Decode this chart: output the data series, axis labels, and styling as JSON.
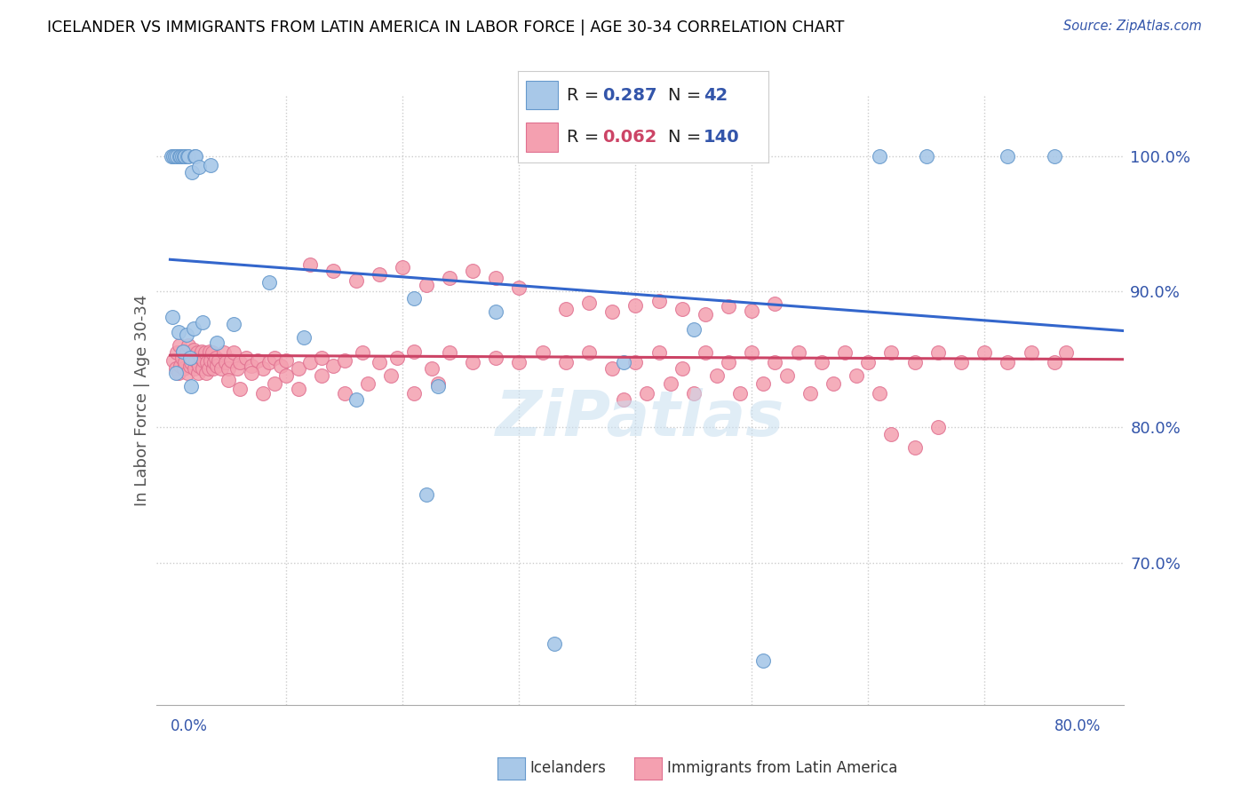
{
  "title": "ICELANDER VS IMMIGRANTS FROM LATIN AMERICA IN LABOR FORCE | AGE 30-34 CORRELATION CHART",
  "source": "Source: ZipAtlas.com",
  "ylabel": "In Labor Force | Age 30-34",
  "xmin": 0.0,
  "xmax": 0.8,
  "ymin": 0.595,
  "ymax": 1.045,
  "blue_R": 0.287,
  "blue_N": 42,
  "pink_R": 0.062,
  "pink_N": 140,
  "blue_marker_color": "#a8c8e8",
  "blue_edge_color": "#6699cc",
  "blue_line_color": "#3366cc",
  "pink_marker_color": "#f4a0b0",
  "pink_edge_color": "#e07090",
  "pink_line_color": "#cc4466",
  "watermark_color": "#c8dff0",
  "legend_label_blue": "Icelanders",
  "legend_label_pink": "Immigrants from Latin America",
  "blue_x": [
    0.001,
    0.002,
    0.003,
    0.004,
    0.005,
    0.006,
    0.007,
    0.008,
    0.009,
    0.01,
    0.011,
    0.012,
    0.013,
    0.014,
    0.015,
    0.016,
    0.017,
    0.018,
    0.019,
    0.02,
    0.021,
    0.022,
    0.025,
    0.028,
    0.035,
    0.04,
    0.055,
    0.085,
    0.115,
    0.16,
    0.21,
    0.22,
    0.23,
    0.28,
    0.33,
    0.39,
    0.45,
    0.51,
    0.61,
    0.65,
    0.72,
    0.76
  ],
  "blue_y": [
    1.0,
    0.881,
    1.0,
    1.0,
    0.84,
    1.0,
    0.87,
    1.0,
    1.0,
    1.0,
    0.856,
    1.0,
    1.0,
    0.868,
    1.0,
    1.0,
    0.851,
    0.83,
    0.988,
    0.873,
    1.0,
    1.0,
    0.992,
    0.877,
    0.993,
    0.862,
    0.876,
    0.907,
    0.866,
    0.82,
    0.895,
    0.75,
    0.83,
    0.885,
    0.64,
    0.848,
    0.872,
    0.628,
    1.0,
    1.0,
    1.0,
    1.0
  ],
  "pink_x": [
    0.003,
    0.005,
    0.006,
    0.007,
    0.008,
    0.009,
    0.01,
    0.011,
    0.012,
    0.013,
    0.014,
    0.015,
    0.016,
    0.017,
    0.018,
    0.019,
    0.02,
    0.021,
    0.022,
    0.023,
    0.024,
    0.025,
    0.026,
    0.027,
    0.028,
    0.029,
    0.03,
    0.031,
    0.032,
    0.033,
    0.034,
    0.035,
    0.036,
    0.037,
    0.038,
    0.039,
    0.04,
    0.042,
    0.044,
    0.046,
    0.048,
    0.05,
    0.052,
    0.055,
    0.058,
    0.06,
    0.065,
    0.07,
    0.075,
    0.08,
    0.085,
    0.09,
    0.095,
    0.1,
    0.11,
    0.12,
    0.13,
    0.14,
    0.15,
    0.165,
    0.18,
    0.195,
    0.21,
    0.225,
    0.24,
    0.26,
    0.28,
    0.3,
    0.32,
    0.34,
    0.36,
    0.38,
    0.4,
    0.42,
    0.44,
    0.46,
    0.48,
    0.5,
    0.52,
    0.54,
    0.56,
    0.58,
    0.6,
    0.62,
    0.64,
    0.66,
    0.68,
    0.7,
    0.72,
    0.74,
    0.76,
    0.77,
    0.34,
    0.36,
    0.38,
    0.4,
    0.42,
    0.44,
    0.46,
    0.48,
    0.5,
    0.52,
    0.28,
    0.3,
    0.12,
    0.14,
    0.16,
    0.18,
    0.2,
    0.22,
    0.24,
    0.26,
    0.62,
    0.64,
    0.66,
    0.05,
    0.06,
    0.07,
    0.08,
    0.09,
    0.1,
    0.11,
    0.13,
    0.15,
    0.17,
    0.19,
    0.21,
    0.23,
    0.39,
    0.41,
    0.43,
    0.45,
    0.47,
    0.49,
    0.51,
    0.53,
    0.55,
    0.57,
    0.59,
    0.61
  ],
  "pink_y": [
    0.849,
    0.843,
    0.855,
    0.84,
    0.86,
    0.845,
    0.851,
    0.856,
    0.843,
    0.848,
    0.855,
    0.84,
    0.86,
    0.845,
    0.848,
    0.852,
    0.857,
    0.843,
    0.849,
    0.855,
    0.84,
    0.845,
    0.851,
    0.856,
    0.843,
    0.849,
    0.855,
    0.84,
    0.848,
    0.843,
    0.856,
    0.849,
    0.855,
    0.843,
    0.848,
    0.851,
    0.845,
    0.849,
    0.843,
    0.855,
    0.848,
    0.843,
    0.849,
    0.855,
    0.843,
    0.848,
    0.851,
    0.845,
    0.849,
    0.843,
    0.848,
    0.851,
    0.845,
    0.849,
    0.843,
    0.848,
    0.851,
    0.845,
    0.849,
    0.855,
    0.848,
    0.851,
    0.856,
    0.843,
    0.855,
    0.848,
    0.851,
    0.848,
    0.855,
    0.848,
    0.855,
    0.843,
    0.848,
    0.855,
    0.843,
    0.855,
    0.848,
    0.855,
    0.848,
    0.855,
    0.848,
    0.855,
    0.848,
    0.855,
    0.848,
    0.855,
    0.848,
    0.855,
    0.848,
    0.855,
    0.848,
    0.855,
    0.887,
    0.892,
    0.885,
    0.89,
    0.893,
    0.887,
    0.883,
    0.889,
    0.886,
    0.891,
    0.91,
    0.903,
    0.92,
    0.915,
    0.908,
    0.913,
    0.918,
    0.905,
    0.91,
    0.915,
    0.795,
    0.785,
    0.8,
    0.835,
    0.828,
    0.84,
    0.825,
    0.832,
    0.838,
    0.828,
    0.838,
    0.825,
    0.832,
    0.838,
    0.825,
    0.832,
    0.82,
    0.825,
    0.832,
    0.825,
    0.838,
    0.825,
    0.832,
    0.838,
    0.825,
    0.832,
    0.838,
    0.825
  ]
}
